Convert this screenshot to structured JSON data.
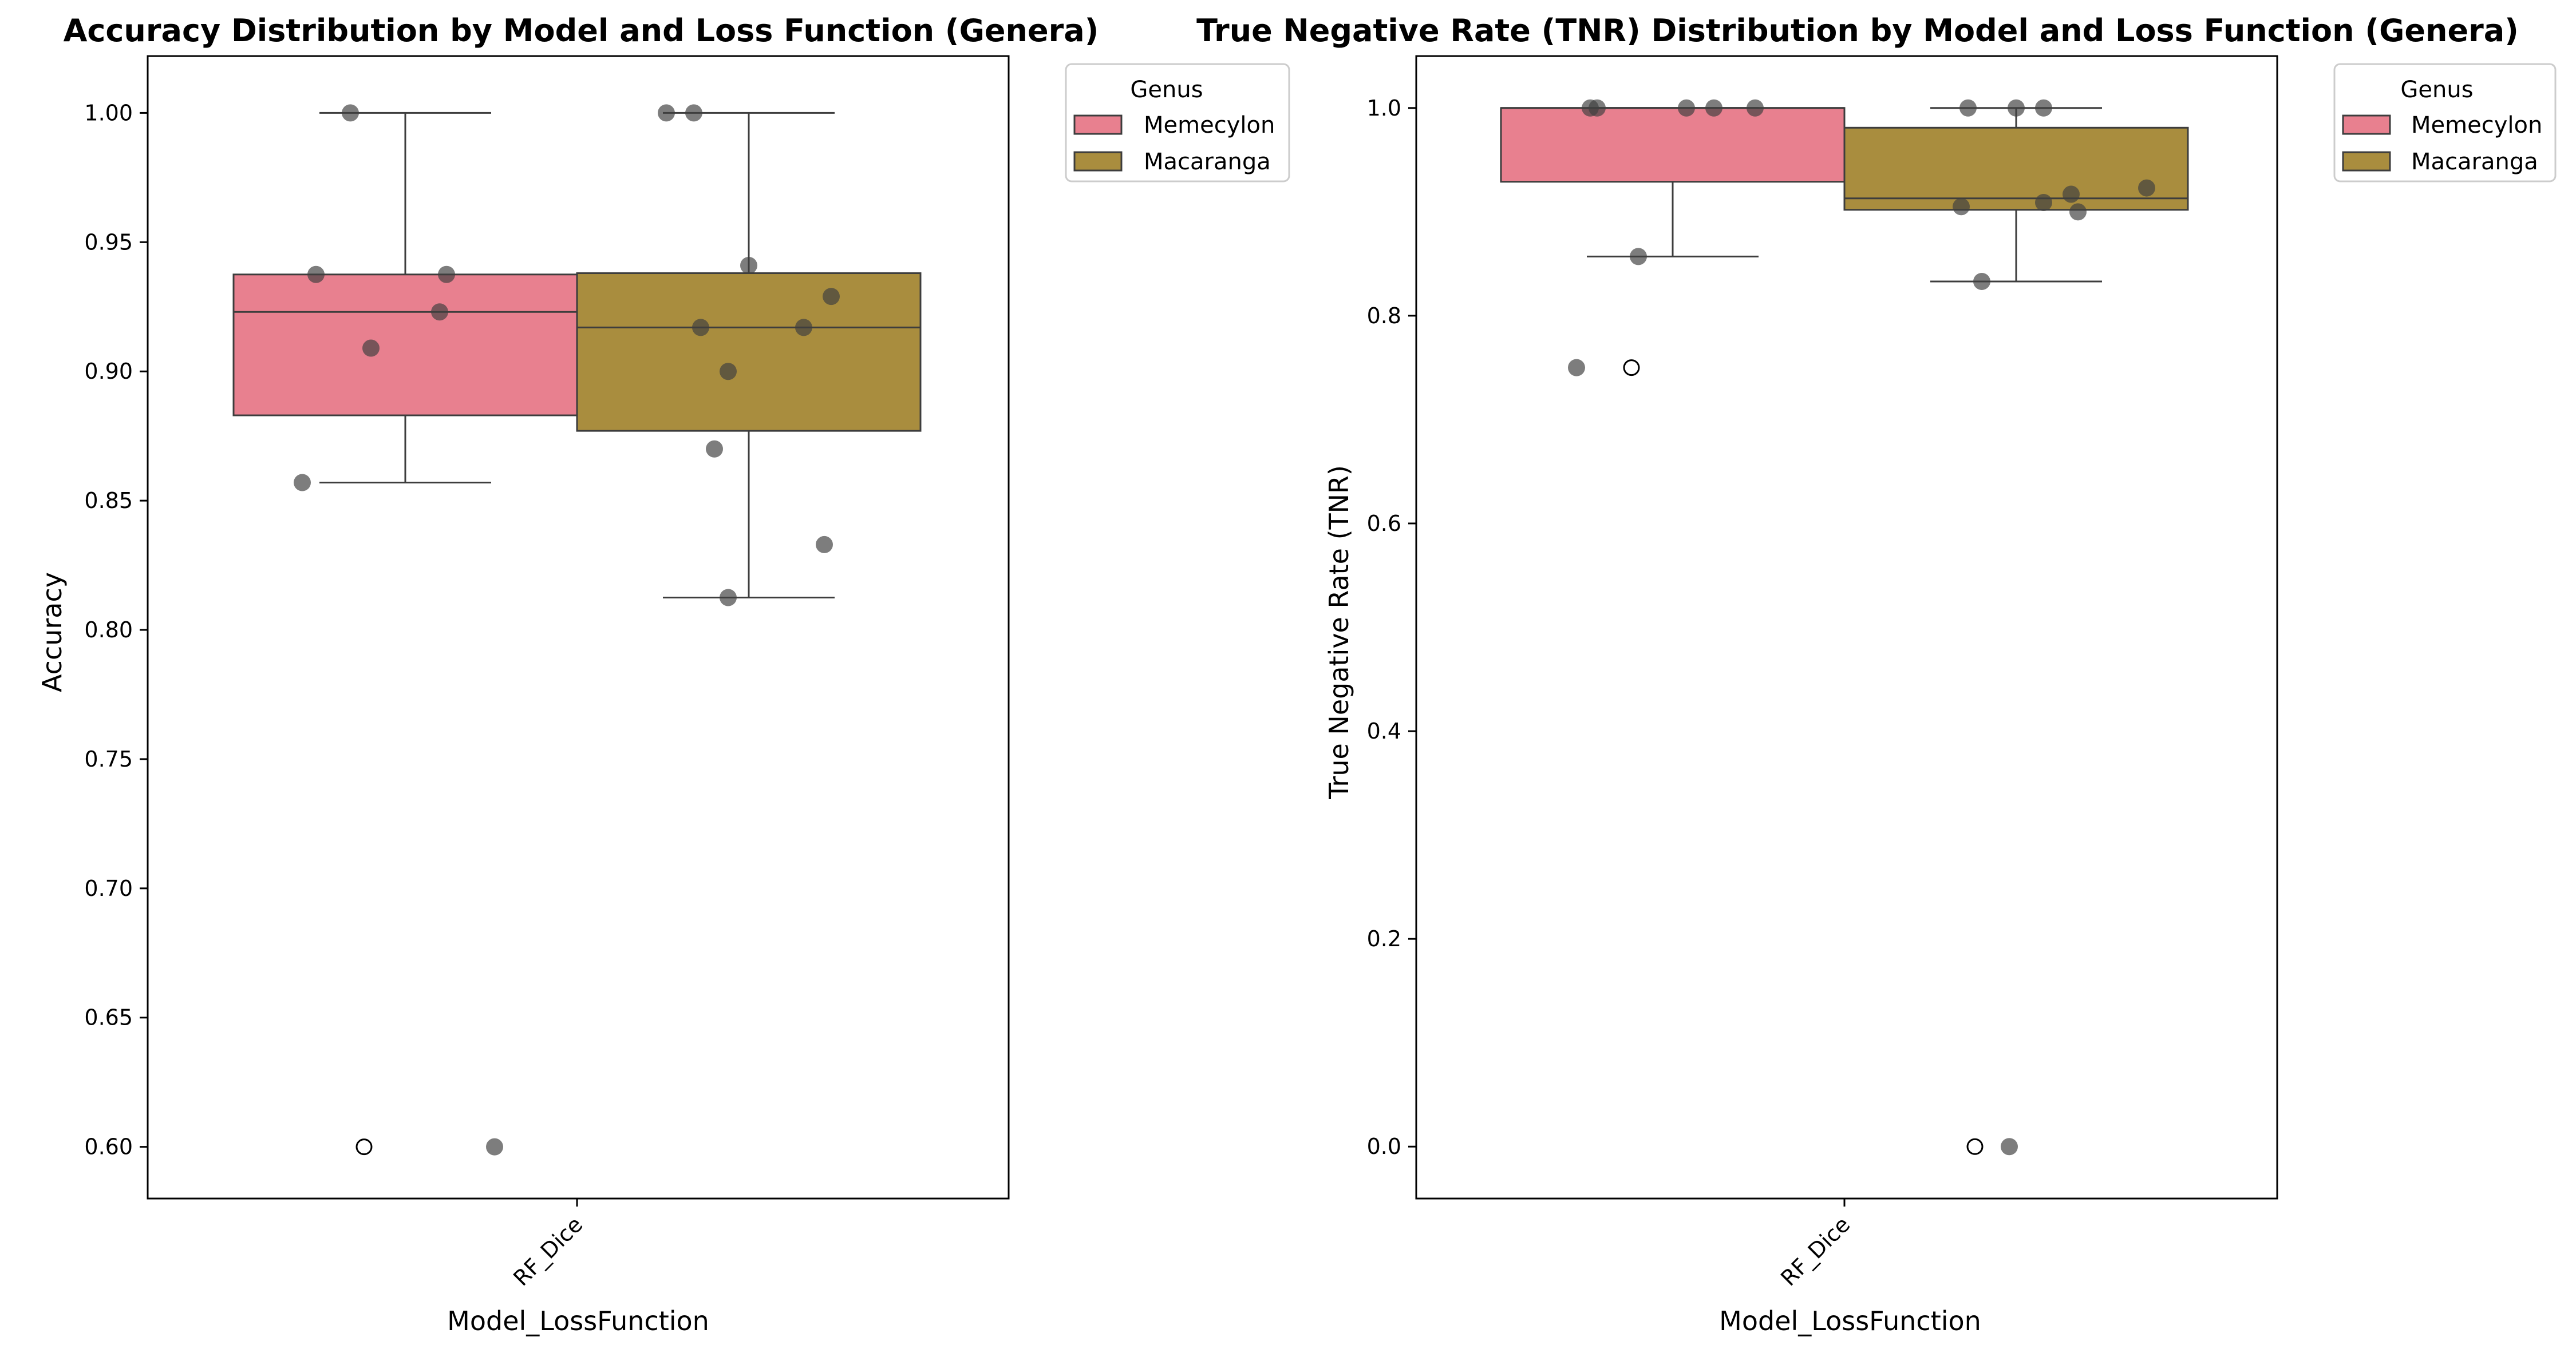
{
  "chart_data": [
    {
      "type": "box",
      "title": "Accuracy Distribution by Model and Loss Function (Genera)",
      "xlabel": "Model_LossFunction",
      "ylabel": "Accuracy",
      "ylim": [
        0.58,
        1.022
      ],
      "yticks": [
        0.6,
        0.65,
        0.7,
        0.75,
        0.8,
        0.85,
        0.9,
        0.95,
        1.0
      ],
      "ytick_labels": [
        "0.60",
        "0.65",
        "0.70",
        "0.75",
        "0.80",
        "0.85",
        "0.90",
        "0.95",
        "1.00"
      ],
      "categories": [
        "RF_Dice"
      ],
      "grid": false,
      "legend": {
        "title": "Genus",
        "placement": "outside-top-right",
        "entries": [
          "Memecylon",
          "Macaranga"
        ]
      },
      "series": [
        {
          "name": "Memecylon",
          "color": "#e8808f",
          "box": {
            "q1": 0.883,
            "median": 0.923,
            "q3": 0.9375,
            "whisker_low": 0.857,
            "whisker_high": 1.0
          },
          "outliers": [
            0.6
          ],
          "points": [
            {
              "offset": -0.08,
              "value": 1.0
            },
            {
              "offset": -0.13,
              "value": 0.9375
            },
            {
              "offset": 0.06,
              "value": 0.9375
            },
            {
              "offset": 0.05,
              "value": 0.923
            },
            {
              "offset": -0.05,
              "value": 0.909
            },
            {
              "offset": -0.15,
              "value": 0.857
            },
            {
              "offset": 0.13,
              "value": 0.6
            }
          ]
        },
        {
          "name": "Macaranga",
          "color": "#a98d3e",
          "box": {
            "q1": 0.877,
            "median": 0.917,
            "q3": 0.938,
            "whisker_low": 0.8125,
            "whisker_high": 1.0
          },
          "outliers": [],
          "points": [
            {
              "offset": -0.12,
              "value": 1.0
            },
            {
              "offset": -0.08,
              "value": 1.0
            },
            {
              "offset": 0.0,
              "value": 0.941
            },
            {
              "offset": 0.12,
              "value": 0.929
            },
            {
              "offset": -0.07,
              "value": 0.917
            },
            {
              "offset": 0.08,
              "value": 0.917
            },
            {
              "offset": -0.03,
              "value": 0.9
            },
            {
              "offset": -0.05,
              "value": 0.87
            },
            {
              "offset": 0.11,
              "value": 0.833
            },
            {
              "offset": -0.03,
              "value": 0.8125
            }
          ]
        }
      ]
    },
    {
      "type": "box",
      "title": "True Negative Rate (TNR) Distribution by Model and Loss Function (Genera)",
      "xlabel": "Model_LossFunction",
      "ylabel": "True Negative Rate (TNR)",
      "ylim": [
        -0.05,
        1.05
      ],
      "yticks": [
        0.0,
        0.2,
        0.4,
        0.6,
        0.8,
        1.0
      ],
      "ytick_labels": [
        "0.0",
        "0.2",
        "0.4",
        "0.6",
        "0.8",
        "1.0"
      ],
      "categories": [
        "RF_Dice"
      ],
      "grid": false,
      "legend": {
        "title": "Genus",
        "placement": "outside-top-right",
        "entries": [
          "Memecylon",
          "Macaranga"
        ]
      },
      "series": [
        {
          "name": "Memecylon",
          "color": "#e8808f",
          "box": {
            "q1": 0.929,
            "median": 1.0,
            "q3": 1.0,
            "whisker_low": 0.857,
            "whisker_high": 1.0
          },
          "outliers": [
            0.75
          ],
          "points": [
            {
              "offset": -0.12,
              "value": 1.0
            },
            {
              "offset": -0.11,
              "value": 1.0
            },
            {
              "offset": 0.02,
              "value": 1.0
            },
            {
              "offset": 0.06,
              "value": 1.0
            },
            {
              "offset": 0.12,
              "value": 1.0
            },
            {
              "offset": -0.05,
              "value": 0.857
            },
            {
              "offset": -0.14,
              "value": 0.75
            }
          ]
        },
        {
          "name": "Macaranga",
          "color": "#a98d3e",
          "box": {
            "q1": 0.902,
            "median": 0.913,
            "q3": 0.981,
            "whisker_low": 0.833,
            "whisker_high": 1.0
          },
          "outliers": [
            0.0
          ],
          "points": [
            {
              "offset": -0.07,
              "value": 1.0
            },
            {
              "offset": 0.0,
              "value": 1.0
            },
            {
              "offset": 0.04,
              "value": 1.0
            },
            {
              "offset": 0.19,
              "value": 0.923
            },
            {
              "offset": 0.08,
              "value": 0.917
            },
            {
              "offset": 0.04,
              "value": 0.909
            },
            {
              "offset": -0.08,
              "value": 0.905
            },
            {
              "offset": 0.09,
              "value": 0.9
            },
            {
              "offset": -0.05,
              "value": 0.833
            },
            {
              "offset": -0.01,
              "value": 0.0
            }
          ]
        }
      ]
    }
  ]
}
